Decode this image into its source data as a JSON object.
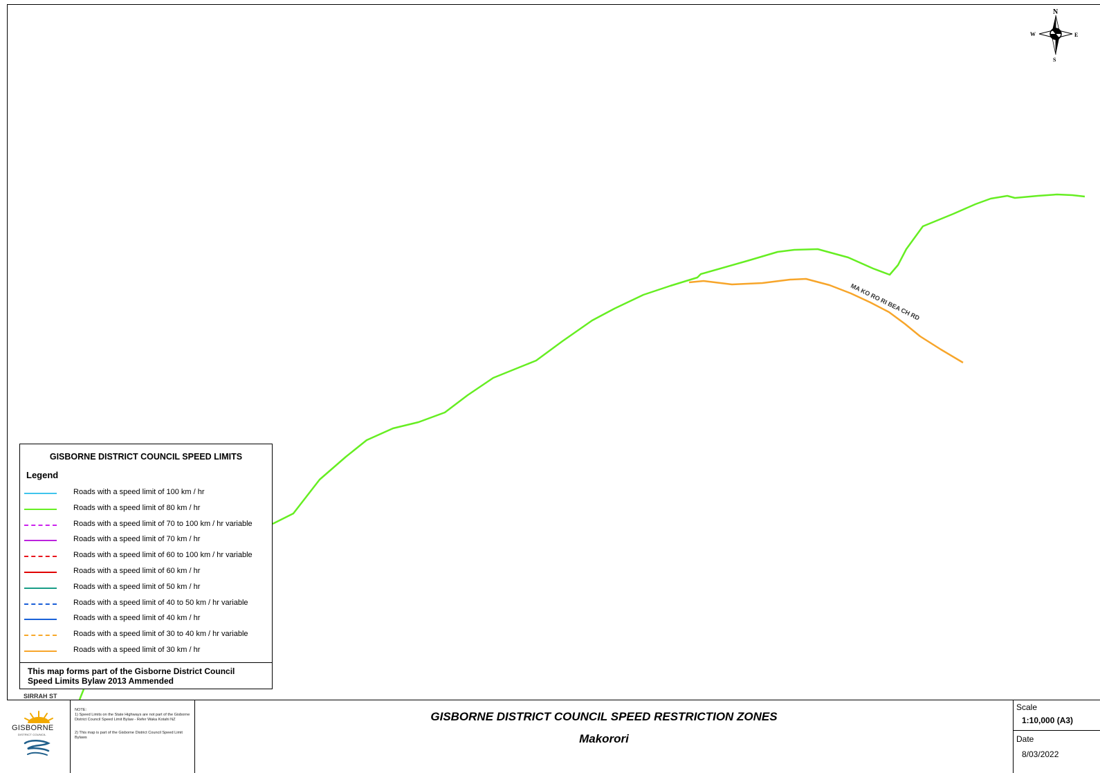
{
  "map": {
    "compass": {
      "n": "N",
      "s": "S",
      "e": "E",
      "w": "W"
    },
    "road_labels": {
      "makorori_beach_rd": "MA KO RO RI BEA CH RD",
      "sirrah_st": "SIRRAH ST"
    },
    "colors": {
      "speed_100": "#3fc4ec",
      "speed_80": "#66ee22",
      "speed_70_100_variable": "#cc22ee",
      "speed_70": "#bb22dd",
      "speed_60_100_variable": "#e8141c",
      "speed_60": "#e00000",
      "speed_50": "#189c86",
      "speed_40_50_variable": "#1a5ed8",
      "speed_40": "#1a62d8",
      "speed_30_40_variable": "#f7a829",
      "speed_30": "#f7a52a"
    }
  },
  "legend": {
    "title": "GISBORNE DISTRICT COUNCIL SPEED LIMITS",
    "heading": "Legend",
    "items": [
      {
        "label": "Roads with a speed limit of 100 km / hr",
        "color": "#3fc4ec",
        "style": "solid"
      },
      {
        "label": "Roads with a speed limit of 80 km / hr",
        "color": "#66ee22",
        "style": "solid"
      },
      {
        "label": "Roads with a speed limit of 70 to 100 km / hr variable",
        "color": "#cc22ee",
        "style": "dashed"
      },
      {
        "label": "Roads with a speed limit of 70 km / hr",
        "color": "#bb22dd",
        "style": "solid"
      },
      {
        "label": "Roads with a speed limit of 60 to 100 km / hr variable",
        "color": "#e8141c",
        "style": "dashed"
      },
      {
        "label": "Roads with a speed limit of 60 km / hr",
        "color": "#e00000",
        "style": "solid"
      },
      {
        "label": "Roads with a speed limit of 50 km / hr",
        "color": "#189c86",
        "style": "solid"
      },
      {
        "label": "Roads with a speed limit of 40 to 50 km / hr variable",
        "color": "#1a5ed8",
        "style": "dashed"
      },
      {
        "label": "Roads with a speed limit of 40 km / hr",
        "color": "#1a62d8",
        "style": "solid"
      },
      {
        "label": "Roads with a speed limit of 30 to 40 km / hr variable",
        "color": "#f7a829",
        "style": "dashed"
      },
      {
        "label": "Roads with a speed limit of 30 km / hr",
        "color": "#f7a52a",
        "style": "solid"
      }
    ],
    "note_line1": "This map forms part of the Gisborne District Council",
    "note_line2": "Speed Limits Bylaw 2013 Ammended"
  },
  "title_block": {
    "logo_text": "GISBORNE",
    "logo_sub": "DISTRICT COUNCIL",
    "note_heading": "NOTE:",
    "note_1": "1) Speed Limits on the State Highways are not part of the Gisborne District Council Speed Limit Bylaw - Refer Waka Kotahi NZ",
    "note_2": "2) This map is part of the Gisborne District Council Speed Limit Bylaws",
    "title": "GISBORNE DISTRICT COUNCIL SPEED RESTRICTION ZONES",
    "subtitle": "Makorori",
    "scale_label": "Scale",
    "scale_value": "1:10,000  (A3)",
    "date_label": "Date",
    "date_value": "8/03/2022"
  }
}
